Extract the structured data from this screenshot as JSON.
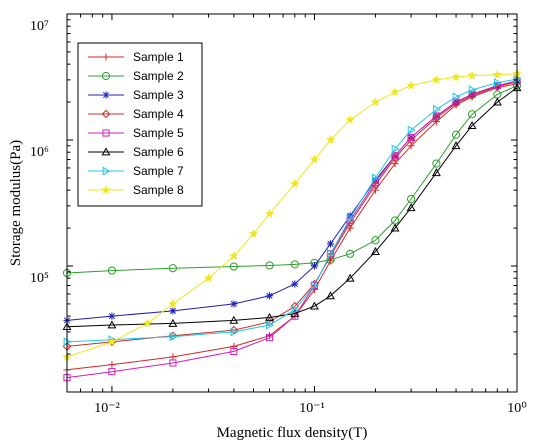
{
  "chart_data": {
    "type": "line",
    "xlabel": "Magnetic flux density(T)",
    "ylabel": "Storage modulus(Pa)",
    "x_scale": "log",
    "y_scale": "log",
    "xlim": [
      0.006,
      1
    ],
    "ylim": [
      10000,
      10000000
    ],
    "x_tick_labels": [
      "10⁻²",
      "10⁻¹",
      "10⁰"
    ],
    "y_tick_labels": [
      "10⁵",
      "10⁶",
      "10⁷"
    ],
    "legend_position": "top-left",
    "grid": false,
    "series": [
      {
        "name": "Sample 1",
        "color": "#d62728",
        "marker": "plus",
        "x": [
          0.006,
          0.01,
          0.02,
          0.04,
          0.06,
          0.08,
          0.1,
          0.12,
          0.15,
          0.2,
          0.25,
          0.3,
          0.4,
          0.5,
          0.6,
          0.8,
          1.0
        ],
        "y": [
          15000,
          16500,
          19000,
          23000,
          28000,
          40000,
          65000,
          110000,
          200000,
          400000,
          650000,
          900000,
          1400000,
          1900000,
          2200000,
          2600000,
          2800000
        ]
      },
      {
        "name": "Sample 2",
        "color": "#2ca02c",
        "marker": "circle",
        "x": [
          0.006,
          0.01,
          0.02,
          0.04,
          0.06,
          0.08,
          0.1,
          0.12,
          0.15,
          0.2,
          0.25,
          0.3,
          0.4,
          0.5,
          0.6,
          0.8,
          1.0
        ],
        "y": [
          88000,
          92000,
          96000,
          99000,
          101000,
          103000,
          106000,
          112000,
          125000,
          160000,
          230000,
          340000,
          650000,
          1100000,
          1600000,
          2300000,
          2700000
        ]
      },
      {
        "name": "Sample 3",
        "color": "#1f1fb4",
        "marker": "asterisk",
        "x": [
          0.006,
          0.01,
          0.02,
          0.04,
          0.06,
          0.08,
          0.1,
          0.12,
          0.15,
          0.2,
          0.25,
          0.3,
          0.4,
          0.5,
          0.6,
          0.8,
          1.0
        ],
        "y": [
          37000,
          40000,
          44000,
          50000,
          58000,
          72000,
          100000,
          150000,
          250000,
          480000,
          750000,
          1050000,
          1550000,
          2000000,
          2300000,
          2700000,
          2900000
        ]
      },
      {
        "name": "Sample 4",
        "color": "#c8302a",
        "marker": "diamond",
        "x": [
          0.006,
          0.01,
          0.02,
          0.04,
          0.06,
          0.08,
          0.1,
          0.12,
          0.15,
          0.2,
          0.25,
          0.3,
          0.4,
          0.5,
          0.6,
          0.8,
          1.0
        ],
        "y": [
          23000,
          25000,
          28000,
          31000,
          36000,
          48000,
          72000,
          120000,
          220000,
          440000,
          720000,
          1000000,
          1500000,
          1950000,
          2250000,
          2650000,
          2900000
        ]
      },
      {
        "name": "Sample 5",
        "color": "#d11fbd",
        "marker": "square",
        "x": [
          0.006,
          0.01,
          0.02,
          0.04,
          0.06,
          0.08,
          0.1,
          0.12,
          0.15,
          0.2,
          0.25,
          0.3,
          0.4,
          0.5,
          0.6,
          0.8,
          1.0
        ],
        "y": [
          13000,
          14500,
          17000,
          21000,
          27000,
          40000,
          70000,
          125000,
          230000,
          460000,
          750000,
          1050000,
          1550000,
          2000000,
          2300000,
          2700000,
          2950000
        ]
      },
      {
        "name": "Sample 6",
        "color": "#000000",
        "marker": "triangle",
        "x": [
          0.006,
          0.01,
          0.02,
          0.04,
          0.06,
          0.08,
          0.1,
          0.12,
          0.15,
          0.2,
          0.25,
          0.3,
          0.4,
          0.5,
          0.6,
          0.8,
          1.0
        ],
        "y": [
          33000,
          34000,
          35000,
          37000,
          39000,
          42000,
          48000,
          58000,
          80000,
          130000,
          200000,
          290000,
          550000,
          900000,
          1300000,
          2000000,
          2600000
        ]
      },
      {
        "name": "Sample 7",
        "color": "#1ec8e6",
        "marker": "triangle-right",
        "x": [
          0.006,
          0.01,
          0.02,
          0.04,
          0.06,
          0.08,
          0.1,
          0.12,
          0.15,
          0.2,
          0.25,
          0.3,
          0.4,
          0.5,
          0.6,
          0.8,
          1.0
        ],
        "y": [
          25000,
          26000,
          27500,
          30000,
          34000,
          45000,
          70000,
          125000,
          240000,
          500000,
          850000,
          1200000,
          1750000,
          2200000,
          2500000,
          2850000,
          3050000
        ]
      },
      {
        "name": "Sample 8",
        "color": "#f0e623",
        "marker": "hexagram",
        "x": [
          0.006,
          0.01,
          0.015,
          0.02,
          0.03,
          0.04,
          0.05,
          0.06,
          0.08,
          0.1,
          0.12,
          0.15,
          0.2,
          0.25,
          0.3,
          0.4,
          0.5,
          0.6,
          0.8,
          1.0
        ],
        "y": [
          19000,
          25000,
          35000,
          50000,
          80000,
          120000,
          180000,
          260000,
          450000,
          700000,
          1000000,
          1450000,
          2000000,
          2400000,
          2700000,
          3000000,
          3150000,
          3250000,
          3300000,
          3350000
        ]
      }
    ]
  }
}
